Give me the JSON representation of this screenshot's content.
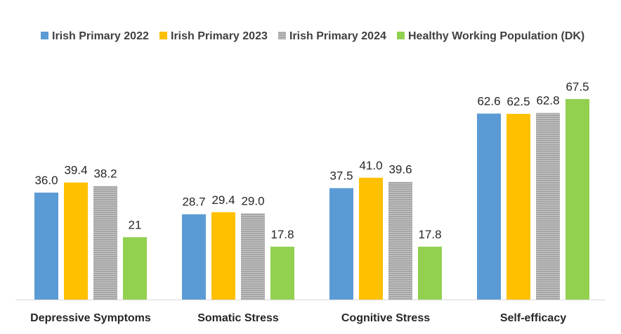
{
  "chart_data": {
    "type": "bar",
    "categories": [
      "Depressive Symptoms",
      "Somatic Stress",
      "Cognitive Stress",
      "Self-efficacy"
    ],
    "series": [
      {
        "name": "Irish Primary 2022",
        "color": "#5B9BD5",
        "values": [
          36.0,
          28.7,
          37.5,
          62.6
        ],
        "labels": [
          "36.0",
          "28.7",
          "37.5",
          "62.6"
        ]
      },
      {
        "name": "Irish Primary 2023",
        "color": "#FFC000",
        "values": [
          39.4,
          29.4,
          41.0,
          62.5
        ],
        "labels": [
          "39.4",
          "29.4",
          "41.0",
          "62.5"
        ]
      },
      {
        "name": "Irish Primary 2024",
        "color": "#A5A5A5",
        "pattern": "horizontal-stripes",
        "values": [
          38.2,
          29.0,
          39.6,
          62.8
        ],
        "labels": [
          "38.2",
          "29.0",
          "39.6",
          "62.8"
        ]
      },
      {
        "name": "Healthy Working Population (DK)",
        "color": "#92D050",
        "values": [
          21,
          17.8,
          17.8,
          67.5
        ],
        "labels": [
          "21",
          "17.8",
          "17.8",
          "67.5"
        ]
      }
    ],
    "ylim": [
      0,
      75
    ],
    "grid": false,
    "y_axis_visible": false,
    "legend_position": "top"
  }
}
